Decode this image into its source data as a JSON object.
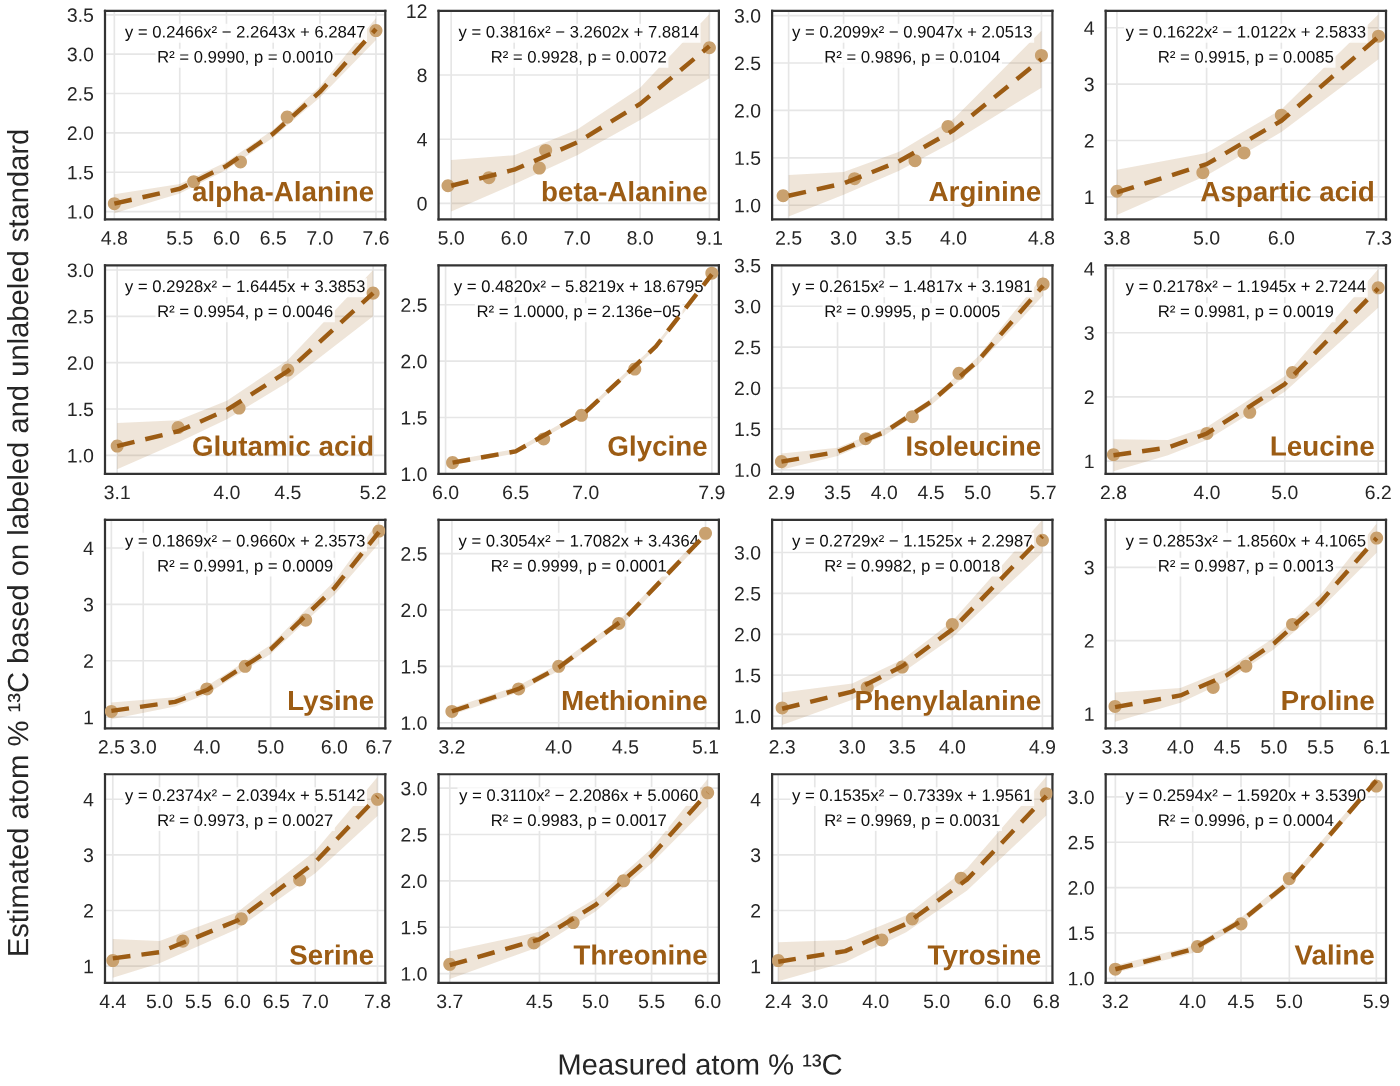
{
  "chart_data": [
    {
      "type": "scatter",
      "title": "alpha-Alanine",
      "xlabel": "Measured atom % ¹³C",
      "ylabel": "Estimated atom % ¹³C based on labeled and unlabeled standard",
      "annotations": [
        "y = 0.2466x² − 2.2643x + 6.2847",
        "R² = 0.9990, p = 0.0010"
      ],
      "grid": true,
      "legend": false,
      "xlim": [
        4.7,
        7.7
      ],
      "xticks": [
        4.8,
        5.5,
        {
          "value": 6,
          "label": "6.0"
        },
        6.5,
        {
          "value": 7,
          "label": "7.0"
        },
        7.6
      ],
      "ylim": [
        0.9,
        3.55
      ],
      "yticks": [
        {
          "value": 1,
          "label": "1.0"
        },
        1.5,
        {
          "value": 2,
          "label": "2.0"
        },
        2.5,
        {
          "value": 3,
          "label": "3.0"
        },
        3.5
      ],
      "series": [
        {
          "marker": "circle",
          "color": "#c9a16f",
          "x": [
            4.8,
            5.65,
            6.15,
            6.65,
            7.6
          ],
          "values": [
            1.1,
            1.38,
            1.63,
            2.2,
            3.3
          ]
        },
        {
          "type": "line",
          "line_style": "dashed",
          "color": "#9c5c14",
          "x": [
            4.8,
            5.5,
            6.0,
            6.5,
            7.0,
            7.6
          ],
          "values": [
            1.1,
            1.29,
            1.58,
            1.99,
            2.52,
            3.32
          ],
          "lower": [
            0.98,
            1.23,
            1.53,
            1.94,
            2.45,
            3.18
          ],
          "upper": [
            1.22,
            1.35,
            1.63,
            2.04,
            2.59,
            3.46
          ]
        }
      ]
    },
    {
      "type": "scatter",
      "title": "beta-Alanine",
      "annotations": [
        "y = 0.3816x² − 3.2602x + 7.8814",
        "R² = 0.9928, p = 0.0072"
      ],
      "grid": true,
      "legend": false,
      "xlim": [
        4.8,
        9.25
      ],
      "xticks": [
        {
          "value": 5,
          "label": "5.0"
        },
        {
          "value": 6,
          "label": "6.0"
        },
        {
          "value": 7,
          "label": "7.0"
        },
        {
          "value": 8,
          "label": "8.0"
        },
        9.1
      ],
      "ylim": [
        -1,
        12
      ],
      "yticks": [
        0,
        4,
        8,
        12
      ],
      "series": [
        {
          "marker": "circle",
          "color": "#c9a16f",
          "x": [
            4.95,
            5.6,
            6.4,
            6.5,
            9.1
          ],
          "values": [
            1.1,
            1.6,
            2.2,
            3.3,
            9.7
          ]
        },
        {
          "type": "line",
          "line_style": "dashed",
          "color": "#9c5c14",
          "x": [
            5.0,
            6.0,
            7.0,
            8.0,
            9.1
          ],
          "values": [
            1.1,
            2.1,
            3.8,
            6.2,
            9.8
          ],
          "lower": [
            -0.5,
            1.2,
            3.0,
            5.2,
            7.8
          ],
          "upper": [
            2.7,
            3.0,
            4.6,
            7.2,
            11.8
          ]
        }
      ]
    },
    {
      "type": "scatter",
      "title": "Arginine",
      "annotations": [
        "y = 0.2099x² − 0.9047x + 2.0513",
        "R² = 0.9896, p = 0.0104"
      ],
      "grid": true,
      "legend": false,
      "xlim": [
        2.35,
        4.9
      ],
      "xticks": [
        2.5,
        {
          "value": 3,
          "label": "3.0"
        },
        3.5,
        {
          "value": 4,
          "label": "4.0"
        },
        4.8
      ],
      "ylim": [
        0.85,
        3.05
      ],
      "yticks": [
        {
          "value": 1,
          "label": "1.0"
        },
        1.5,
        {
          "value": 2,
          "label": "2.0"
        },
        2.5,
        {
          "value": 3,
          "label": "3.0"
        }
      ],
      "series": [
        {
          "marker": "circle",
          "color": "#c9a16f",
          "x": [
            2.45,
            3.1,
            3.65,
            3.95,
            4.8
          ],
          "values": [
            1.1,
            1.28,
            1.47,
            1.83,
            2.58
          ]
        },
        {
          "type": "line",
          "line_style": "dashed",
          "color": "#9c5c14",
          "x": [
            2.5,
            3.0,
            3.5,
            4.0,
            4.8
          ],
          "values": [
            1.1,
            1.23,
            1.46,
            1.79,
            2.54
          ],
          "lower": [
            0.88,
            1.11,
            1.36,
            1.67,
            2.24
          ],
          "upper": [
            1.32,
            1.35,
            1.56,
            1.91,
            2.84
          ]
        }
      ]
    },
    {
      "type": "scatter",
      "title": "Aspartic acid",
      "annotations": [
        "y = 0.1622x² − 1.0122x + 2.5833",
        "R² = 0.9915, p = 0.0085"
      ],
      "grid": true,
      "legend": false,
      "xlim": [
        3.65,
        7.4
      ],
      "xticks": [
        3.8,
        {
          "value": 5,
          "label": "5.0"
        },
        {
          "value": 6,
          "label": "6.0"
        },
        7.3
      ],
      "ylim": [
        0.6,
        4.3
      ],
      "yticks": [
        1,
        2,
        3,
        4
      ],
      "series": [
        {
          "marker": "circle",
          "color": "#c9a16f",
          "x": [
            3.8,
            4.95,
            5.5,
            6.0,
            7.3
          ],
          "values": [
            1.1,
            1.43,
            1.78,
            2.45,
            3.85
          ]
        },
        {
          "type": "line",
          "line_style": "dashed",
          "color": "#9c5c14",
          "x": [
            3.8,
            5.0,
            6.0,
            7.3
          ],
          "values": [
            1.08,
            1.58,
            2.35,
            3.84
          ],
          "lower": [
            0.68,
            1.38,
            2.15,
            3.44
          ],
          "upper": [
            1.48,
            1.78,
            2.55,
            4.24
          ]
        }
      ]
    },
    {
      "type": "scatter",
      "title": "Glutamic acid",
      "annotations": [
        "y = 0.2928x² − 1.6445x + 3.3853",
        "R² = 0.9954, p = 0.0046"
      ],
      "grid": true,
      "legend": false,
      "xlim": [
        3.0,
        5.3
      ],
      "xticks": [
        3.1,
        {
          "value": 4,
          "label": "4.0"
        },
        4.5,
        5.2
      ],
      "ylim": [
        0.8,
        3.05
      ],
      "yticks": [
        {
          "value": 1,
          "label": "1.0"
        },
        1.5,
        {
          "value": 2,
          "label": "2.0"
        },
        2.5,
        {
          "value": 3,
          "label": "3.0"
        }
      ],
      "series": [
        {
          "marker": "circle",
          "color": "#c9a16f",
          "x": [
            3.1,
            3.6,
            4.1,
            4.5,
            5.2
          ],
          "values": [
            1.1,
            1.3,
            1.51,
            1.92,
            2.75
          ]
        },
        {
          "type": "line",
          "line_style": "dashed",
          "color": "#9c5c14",
          "x": [
            3.1,
            3.6,
            4.0,
            4.5,
            5.2
          ],
          "values": [
            1.1,
            1.26,
            1.49,
            1.91,
            2.75
          ],
          "lower": [
            0.85,
            1.14,
            1.39,
            1.79,
            2.5
          ],
          "upper": [
            1.35,
            1.38,
            1.59,
            2.03,
            3.0
          ]
        }
      ]
    },
    {
      "type": "scatter",
      "title": "Glycine",
      "annotations": [
        "y = 0.4820x² − 5.8219x + 18.6795",
        "R² = 1.0000, p = 2.136e−05"
      ],
      "grid": true,
      "legend": false,
      "xlim": [
        5.95,
        7.95
      ],
      "xticks": [
        {
          "value": 6,
          "label": "6.0"
        },
        6.5,
        {
          "value": 7,
          "label": "7.0"
        },
        7.9
      ],
      "ylim": [
        1.0,
        2.85
      ],
      "yticks": [
        {
          "value": 1,
          "label": "1.0"
        },
        1.5,
        {
          "value": 2,
          "label": "2.0"
        },
        2.5
      ],
      "series": [
        {
          "marker": "circle",
          "color": "#c9a16f",
          "x": [
            6.05,
            6.7,
            6.97,
            7.35,
            7.9
          ],
          "values": [
            1.1,
            1.31,
            1.52,
            1.93,
            2.78
          ]
        },
        {
          "type": "line",
          "line_style": "dashed",
          "color": "#9c5c14",
          "x": [
            6.05,
            6.5,
            7.0,
            7.5,
            7.9
          ],
          "values": [
            1.1,
            1.2,
            1.55,
            2.13,
            2.77
          ],
          "lower": [
            1.08,
            1.18,
            1.53,
            2.11,
            2.75
          ],
          "upper": [
            1.12,
            1.22,
            1.57,
            2.15,
            2.79
          ]
        }
      ]
    },
    {
      "type": "scatter",
      "title": "Isoleucine",
      "annotations": [
        "y = 0.2615x² − 1.4817x + 3.1981",
        "R² = 0.9995, p = 0.0005"
      ],
      "grid": true,
      "legend": false,
      "xlim": [
        2.8,
        5.8
      ],
      "xticks": [
        2.9,
        3.5,
        {
          "value": 4,
          "label": "4.0"
        },
        4.5,
        {
          "value": 5,
          "label": "5.0"
        },
        5.7
      ],
      "ylim": [
        0.95,
        3.5
      ],
      "yticks": [
        {
          "value": 1,
          "label": "1.0"
        },
        1.5,
        {
          "value": 2,
          "label": "2.0"
        },
        2.5,
        {
          "value": 3,
          "label": "3.0"
        },
        3.5
      ],
      "series": [
        {
          "marker": "circle",
          "color": "#c9a16f",
          "x": [
            2.9,
            3.8,
            4.3,
            4.8,
            5.7
          ],
          "values": [
            1.1,
            1.38,
            1.65,
            2.18,
            3.27
          ]
        },
        {
          "type": "line",
          "line_style": "dashed",
          "color": "#9c5c14",
          "x": [
            2.9,
            3.5,
            4.0,
            4.5,
            5.0,
            5.7
          ],
          "values": [
            1.1,
            1.22,
            1.46,
            1.83,
            2.33,
            3.25
          ],
          "lower": [
            1.0,
            1.17,
            1.42,
            1.79,
            2.28,
            3.13
          ],
          "upper": [
            1.2,
            1.27,
            1.5,
            1.87,
            2.38,
            3.37
          ]
        }
      ]
    },
    {
      "type": "scatter",
      "title": "Leucine",
      "annotations": [
        "y = 0.2178x² − 1.1945x + 2.7244",
        "R² = 0.9981, p = 0.0019"
      ],
      "grid": true,
      "legend": false,
      "xlim": [
        2.7,
        6.3
      ],
      "xticks": [
        2.8,
        {
          "value": 4,
          "label": "4.0"
        },
        {
          "value": 5,
          "label": "5.0"
        },
        6.2
      ],
      "ylim": [
        0.8,
        4.05
      ],
      "yticks": [
        1,
        2,
        3,
        4
      ],
      "series": [
        {
          "marker": "circle",
          "color": "#c9a16f",
          "x": [
            2.8,
            4.0,
            4.55,
            5.1,
            6.2
          ],
          "values": [
            1.1,
            1.43,
            1.76,
            2.38,
            3.7
          ]
        },
        {
          "type": "line",
          "line_style": "dashed",
          "color": "#9c5c14",
          "x": [
            2.8,
            3.5,
            4.0,
            5.0,
            6.2
          ],
          "values": [
            1.09,
            1.21,
            1.43,
            2.2,
            3.69
          ],
          "lower": [
            0.84,
            1.09,
            1.33,
            2.08,
            3.39
          ],
          "upper": [
            1.34,
            1.33,
            1.53,
            2.32,
            3.99
          ]
        }
      ]
    },
    {
      "type": "scatter",
      "title": "Lysine",
      "annotations": [
        "y = 0.1869x² − 0.9660x + 2.3573",
        "R² = 0.9991, p = 0.0009"
      ],
      "grid": true,
      "legend": false,
      "xlim": [
        2.4,
        6.8
      ],
      "xticks": [
        2.5,
        {
          "value": 3,
          "label": "3.0"
        },
        {
          "value": 4,
          "label": "4.0"
        },
        {
          "value": 5,
          "label": "5.0"
        },
        {
          "value": 6,
          "label": "6.0"
        },
        6.7
      ],
      "ylim": [
        0.8,
        4.5
      ],
      "yticks": [
        1,
        2,
        3,
        4
      ],
      "series": [
        {
          "marker": "circle",
          "color": "#c9a16f",
          "x": [
            2.5,
            4.0,
            4.6,
            5.55,
            6.7
          ],
          "values": [
            1.1,
            1.5,
            1.9,
            2.72,
            4.3
          ]
        },
        {
          "type": "line",
          "line_style": "dashed",
          "color": "#9c5c14",
          "x": [
            2.5,
            3.5,
            4.0,
            5.0,
            6.0,
            6.7
          ],
          "values": [
            1.11,
            1.27,
            1.48,
            2.2,
            3.29,
            4.28
          ],
          "lower": [
            0.96,
            1.19,
            1.41,
            2.12,
            3.17,
            4.08
          ],
          "upper": [
            1.26,
            1.35,
            1.55,
            2.28,
            3.41,
            4.48
          ]
        }
      ]
    },
    {
      "type": "scatter",
      "title": "Methionine",
      "annotations": [
        "y = 0.3054x² − 1.7082x + 3.4364",
        "R² = 0.9999, p = 0.0001"
      ],
      "grid": true,
      "legend": false,
      "xlim": [
        3.1,
        5.2
      ],
      "xticks": [
        3.2,
        {
          "value": 4,
          "label": "4.0"
        },
        4.5,
        5.1
      ],
      "ylim": [
        0.95,
        2.8
      ],
      "yticks": [
        {
          "value": 1,
          "label": "1.0"
        },
        1.5,
        {
          "value": 2,
          "label": "2.0"
        },
        2.5
      ],
      "series": [
        {
          "marker": "circle",
          "color": "#c9a16f",
          "x": [
            3.2,
            3.7,
            4.0,
            4.45,
            5.1
          ],
          "values": [
            1.1,
            1.3,
            1.5,
            1.88,
            2.68
          ]
        },
        {
          "type": "line",
          "line_style": "dashed",
          "color": "#9c5c14",
          "x": [
            3.2,
            3.7,
            4.0,
            4.5,
            5.1
          ],
          "values": [
            1.1,
            1.3,
            1.49,
            1.93,
            2.67
          ],
          "lower": [
            1.07,
            1.27,
            1.46,
            1.9,
            2.64
          ],
          "upper": [
            1.13,
            1.33,
            1.52,
            1.96,
            2.7
          ]
        }
      ]
    },
    {
      "type": "scatter",
      "title": "Phenylalanine",
      "annotations": [
        "y = 0.2729x² − 1.1525x + 2.2987",
        "R² = 0.9982, p = 0.0018"
      ],
      "grid": true,
      "legend": false,
      "xlim": [
        2.2,
        5.0
      ],
      "xticks": [
        2.3,
        {
          "value": 3,
          "label": "3.0"
        },
        3.5,
        {
          "value": 4,
          "label": "4.0"
        },
        4.9
      ],
      "ylim": [
        0.85,
        3.4
      ],
      "yticks": [
        {
          "value": 1,
          "label": "1.0"
        },
        1.5,
        {
          "value": 2,
          "label": "2.0"
        },
        2.5,
        {
          "value": 3,
          "label": "3.0"
        }
      ],
      "series": [
        {
          "marker": "circle",
          "color": "#c9a16f",
          "x": [
            2.3,
            3.15,
            3.5,
            4.0,
            4.9
          ],
          "values": [
            1.1,
            1.35,
            1.6,
            2.12,
            3.15
          ]
        },
        {
          "type": "line",
          "line_style": "dashed",
          "color": "#9c5c14",
          "x": [
            2.3,
            3.0,
            3.5,
            4.0,
            4.9
          ],
          "values": [
            1.09,
            1.3,
            1.61,
            2.06,
            3.2
          ],
          "lower": [
            0.89,
            1.2,
            1.53,
            1.96,
            3.0
          ],
          "upper": [
            1.29,
            1.4,
            1.69,
            2.16,
            3.4
          ]
        }
      ]
    },
    {
      "type": "scatter",
      "title": "Proline",
      "annotations": [
        "y = 0.2853x² − 1.8560x + 4.1065",
        "R² = 0.9987, p = 0.0013"
      ],
      "grid": true,
      "legend": false,
      "xlim": [
        3.2,
        6.2
      ],
      "xticks": [
        3.3,
        {
          "value": 4,
          "label": "4.0"
        },
        4.5,
        {
          "value": 5,
          "label": "5.0"
        },
        5.5,
        6.1
      ],
      "ylim": [
        0.8,
        3.65
      ],
      "yticks": [
        1,
        2,
        3
      ],
      "series": [
        {
          "marker": "circle",
          "color": "#c9a16f",
          "x": [
            3.3,
            4.35,
            4.7,
            5.2,
            6.1
          ],
          "values": [
            1.1,
            1.36,
            1.65,
            2.22,
            3.4
          ]
        },
        {
          "type": "line",
          "line_style": "dashed",
          "color": "#9c5c14",
          "x": [
            3.3,
            4.0,
            4.5,
            5.0,
            5.5,
            6.1
          ],
          "values": [
            1.09,
            1.25,
            1.53,
            1.96,
            2.53,
            3.4
          ],
          "lower": [
            0.89,
            1.15,
            1.45,
            1.88,
            2.43,
            3.2
          ],
          "upper": [
            1.29,
            1.35,
            1.61,
            2.04,
            2.63,
            3.6
          ]
        }
      ]
    },
    {
      "type": "scatter",
      "title": "Serine",
      "annotations": [
        "y = 0.2374x² − 2.0394x + 5.5142",
        "R² = 0.9973, p = 0.0027"
      ],
      "grid": true,
      "legend": false,
      "xlim": [
        4.3,
        7.9
      ],
      "xticks": [
        4.4,
        {
          "value": 5,
          "label": "5.0"
        },
        5.5,
        {
          "value": 6,
          "label": "6.0"
        },
        6.5,
        {
          "value": 7,
          "label": "7.0"
        },
        7.8
      ],
      "ylim": [
        0.7,
        4.45
      ],
      "yticks": [
        1,
        2,
        3,
        4
      ],
      "series": [
        {
          "marker": "circle",
          "color": "#c9a16f",
          "x": [
            4.4,
            5.3,
            6.05,
            6.8,
            7.8
          ],
          "values": [
            1.1,
            1.45,
            1.85,
            2.55,
            4.0
          ]
        },
        {
          "type": "line",
          "line_style": "dashed",
          "color": "#9c5c14",
          "x": [
            4.4,
            5.0,
            6.0,
            7.0,
            7.8
          ],
          "values": [
            1.14,
            1.25,
            1.82,
            2.87,
            4.05
          ],
          "lower": [
            0.79,
            1.05,
            1.67,
            2.67,
            3.7
          ],
          "upper": [
            1.49,
            1.45,
            1.97,
            3.07,
            4.4
          ]
        }
      ]
    },
    {
      "type": "scatter",
      "title": "Threonine",
      "annotations": [
        "y = 0.3110x² − 2.2086x + 5.0060",
        "R² = 0.9983, p = 0.0017"
      ],
      "grid": true,
      "legend": false,
      "xlim": [
        3.6,
        6.1
      ],
      "xticks": [
        3.7,
        4.5,
        {
          "value": 5,
          "label": "5.0"
        },
        5.5,
        {
          "value": 6,
          "label": "6.0"
        }
      ],
      "ylim": [
        0.9,
        3.15
      ],
      "yticks": [
        {
          "value": 1,
          "label": "1.0"
        },
        1.5,
        {
          "value": 2,
          "label": "2.0"
        },
        2.5,
        {
          "value": 3,
          "label": "3.0"
        }
      ],
      "series": [
        {
          "marker": "circle",
          "color": "#c9a16f",
          "x": [
            3.7,
            4.45,
            4.8,
            5.25,
            6.0
          ],
          "values": [
            1.1,
            1.33,
            1.55,
            2.0,
            2.95
          ]
        },
        {
          "type": "line",
          "line_style": "dashed",
          "color": "#9c5c14",
          "x": [
            3.7,
            4.5,
            5.0,
            5.5,
            6.0
          ],
          "values": [
            1.09,
            1.37,
            1.74,
            2.27,
            2.95
          ],
          "lower": [
            0.94,
            1.29,
            1.67,
            2.19,
            2.8
          ],
          "upper": [
            1.24,
            1.45,
            1.81,
            2.35,
            3.1
          ]
        }
      ]
    },
    {
      "type": "scatter",
      "title": "Tyrosine",
      "annotations": [
        "y = 0.1535x² − 0.7339x + 1.9561",
        "R² = 0.9969, p = 0.0031"
      ],
      "grid": true,
      "legend": false,
      "xlim": [
        2.3,
        6.9
      ],
      "xticks": [
        2.4,
        {
          "value": 3,
          "label": "3.0"
        },
        {
          "value": 4,
          "label": "4.0"
        },
        {
          "value": 5,
          "label": "5.0"
        },
        {
          "value": 6,
          "label": "6.0"
        },
        6.8
      ],
      "ylim": [
        0.7,
        4.45
      ],
      "yticks": [
        1,
        2,
        3,
        4
      ],
      "series": [
        {
          "marker": "circle",
          "color": "#c9a16f",
          "x": [
            2.4,
            4.1,
            4.6,
            5.4,
            6.8
          ],
          "values": [
            1.1,
            1.47,
            1.85,
            2.58,
            4.1
          ]
        },
        {
          "type": "line",
          "line_style": "dashed",
          "color": "#9c5c14",
          "x": [
            2.4,
            3.5,
            4.5,
            5.5,
            6.8
          ],
          "values": [
            1.08,
            1.27,
            1.76,
            2.56,
            4.06
          ],
          "lower": [
            0.73,
            1.07,
            1.61,
            2.36,
            3.71
          ],
          "upper": [
            1.43,
            1.47,
            1.91,
            2.76,
            4.41
          ]
        }
      ]
    },
    {
      "type": "scatter",
      "title": "Valine",
      "annotations": [
        "y = 0.2594x² − 1.5920x + 3.5390",
        "R² = 0.9996, p = 0.0004"
      ],
      "grid": true,
      "legend": false,
      "xlim": [
        3.1,
        6.0
      ],
      "xticks": [
        3.2,
        {
          "value": 4,
          "label": "4.0"
        },
        4.5,
        {
          "value": 5,
          "label": "5.0"
        },
        5.9
      ],
      "ylim": [
        0.95,
        3.25
      ],
      "yticks": [
        {
          "value": 1,
          "label": "1.0"
        },
        1.5,
        {
          "value": 2,
          "label": "2.0"
        },
        2.5,
        {
          "value": 3,
          "label": "3.0"
        }
      ],
      "series": [
        {
          "marker": "circle",
          "color": "#c9a16f",
          "x": [
            3.2,
            4.05,
            4.5,
            5.0,
            5.9
          ],
          "values": [
            1.1,
            1.35,
            1.6,
            2.1,
            3.12
          ]
        },
        {
          "type": "line",
          "line_style": "dashed",
          "color": "#9c5c14",
          "x": [
            3.2,
            4.0,
            4.5,
            5.0,
            5.9
          ],
          "values": [
            1.1,
            1.32,
            1.63,
            2.06,
            3.18
          ],
          "lower": [
            1.06,
            1.28,
            1.59,
            2.02,
            3.14
          ],
          "upper": [
            1.14,
            1.36,
            1.67,
            2.1,
            3.22
          ]
        }
      ]
    }
  ]
}
